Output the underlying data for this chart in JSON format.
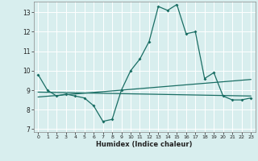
{
  "xlabel": "Humidex (Indice chaleur)",
  "bg_color": "#d8eeee",
  "line_color": "#1a6e64",
  "grid_color": "#ffffff",
  "line1_x": [
    0,
    1,
    2,
    3,
    4,
    5,
    6,
    7,
    8,
    9,
    10,
    11,
    12,
    13,
    14,
    15,
    16,
    17,
    18,
    19,
    20,
    21,
    22,
    23
  ],
  "line1_y": [
    9.8,
    9.0,
    8.7,
    8.8,
    8.7,
    8.6,
    8.2,
    7.4,
    7.5,
    9.0,
    10.0,
    10.6,
    11.5,
    13.3,
    13.1,
    13.4,
    11.9,
    12.0,
    9.6,
    9.9,
    8.7,
    8.5,
    8.5,
    8.6
  ],
  "line2_x": [
    0,
    23
  ],
  "line2_y": [
    8.9,
    8.7
  ],
  "line3_x": [
    0,
    23
  ],
  "line3_y": [
    8.65,
    9.55
  ],
  "xlim": [
    -0.5,
    23.5
  ],
  "ylim": [
    6.85,
    13.55
  ],
  "yticks": [
    7,
    8,
    9,
    10,
    11,
    12,
    13
  ],
  "xticks": [
    0,
    1,
    2,
    3,
    4,
    5,
    6,
    7,
    8,
    9,
    10,
    11,
    12,
    13,
    14,
    15,
    16,
    17,
    18,
    19,
    20,
    21,
    22,
    23
  ]
}
